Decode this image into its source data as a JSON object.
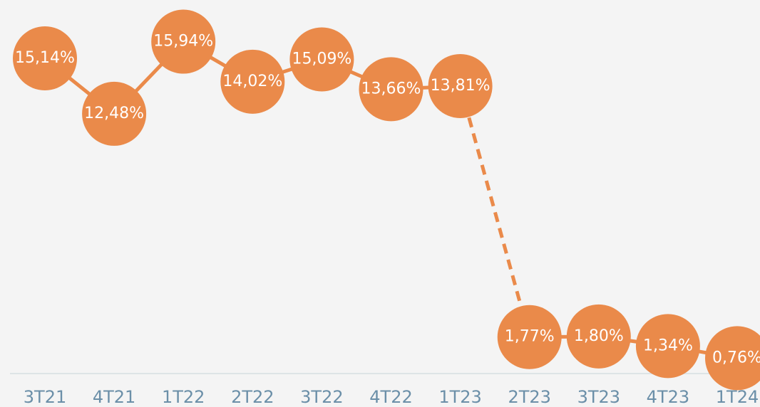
{
  "chart_data": {
    "type": "line",
    "categories": [
      "3T21",
      "4T21",
      "1T22",
      "2T22",
      "3T22",
      "4T22",
      "1T23",
      "2T23",
      "3T23",
      "4T23",
      "1T24"
    ],
    "values": [
      15.14,
      12.48,
      15.94,
      14.02,
      15.09,
      13.66,
      13.81,
      1.77,
      1.8,
      1.34,
      0.76
    ],
    "value_labels": [
      "15,14%",
      "12,48%",
      "15,94%",
      "14,02%",
      "15,09%",
      "13,66%",
      "13,81%",
      "1,77%",
      "1,80%",
      "1,34%",
      "0,76%"
    ],
    "color": "#ea8a4a",
    "dashed_segments": [
      6
    ]
  }
}
